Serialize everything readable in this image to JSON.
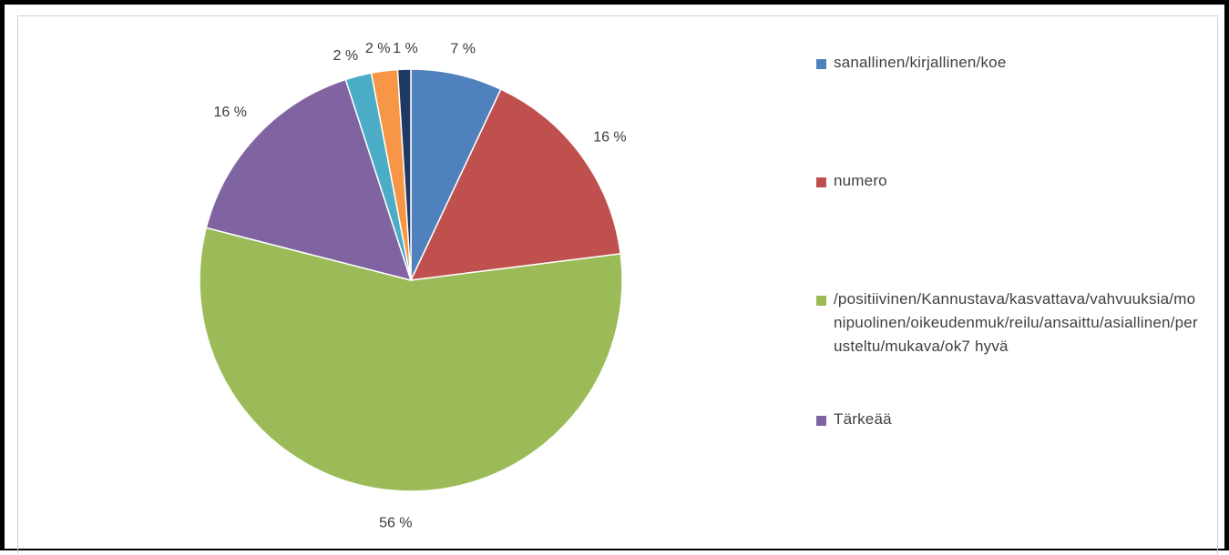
{
  "chart_data": {
    "type": "pie",
    "slices": [
      {
        "label": "7 %",
        "value": 7,
        "color": "#4f81bd",
        "legend": "sanallinen/kirjallinen/koe"
      },
      {
        "label": "16 %",
        "value": 16,
        "color": "#c0504d",
        "legend": "numero"
      },
      {
        "label": "56 %",
        "value": 56,
        "color": "#9bbb59",
        "legend": "/positiivinen/Kannustava/kasvattava/vahvuuksia/monipuolinen/oikeudenmuk/reilu/ansaittu/asiallinen/perusteltu/mukava/ok7 hyvä"
      },
      {
        "label": "16 %",
        "value": 16,
        "color": "#8064a2",
        "legend": "Tärkeää"
      },
      {
        "label": "2 %",
        "value": 2,
        "color": "#4bacc6",
        "legend": ""
      },
      {
        "label": "2 %",
        "value": 2,
        "color": "#f79646",
        "legend": ""
      },
      {
        "label": "1 %",
        "value": 1,
        "color": "#1f3864",
        "legend": ""
      }
    ],
    "legend_position": "right",
    "start_angle_deg": 0,
    "direction": "clockwise"
  },
  "legend": {
    "items": [
      {
        "label": "sanallinen/kirjallinen/koe",
        "color": "#4f81bd"
      },
      {
        "label": "numero",
        "color": "#c0504d"
      },
      {
        "label": "/positiivinen/Kannustava/kasvattava/vahvuuksia/monipuolinen/oikeudenmuk/reilu/ansaittu/asiallinen/perusteltu/mukava/ok7 hyvä",
        "color": "#9bbb59"
      },
      {
        "label": "Tärkeää",
        "color": "#8064a2"
      }
    ]
  }
}
